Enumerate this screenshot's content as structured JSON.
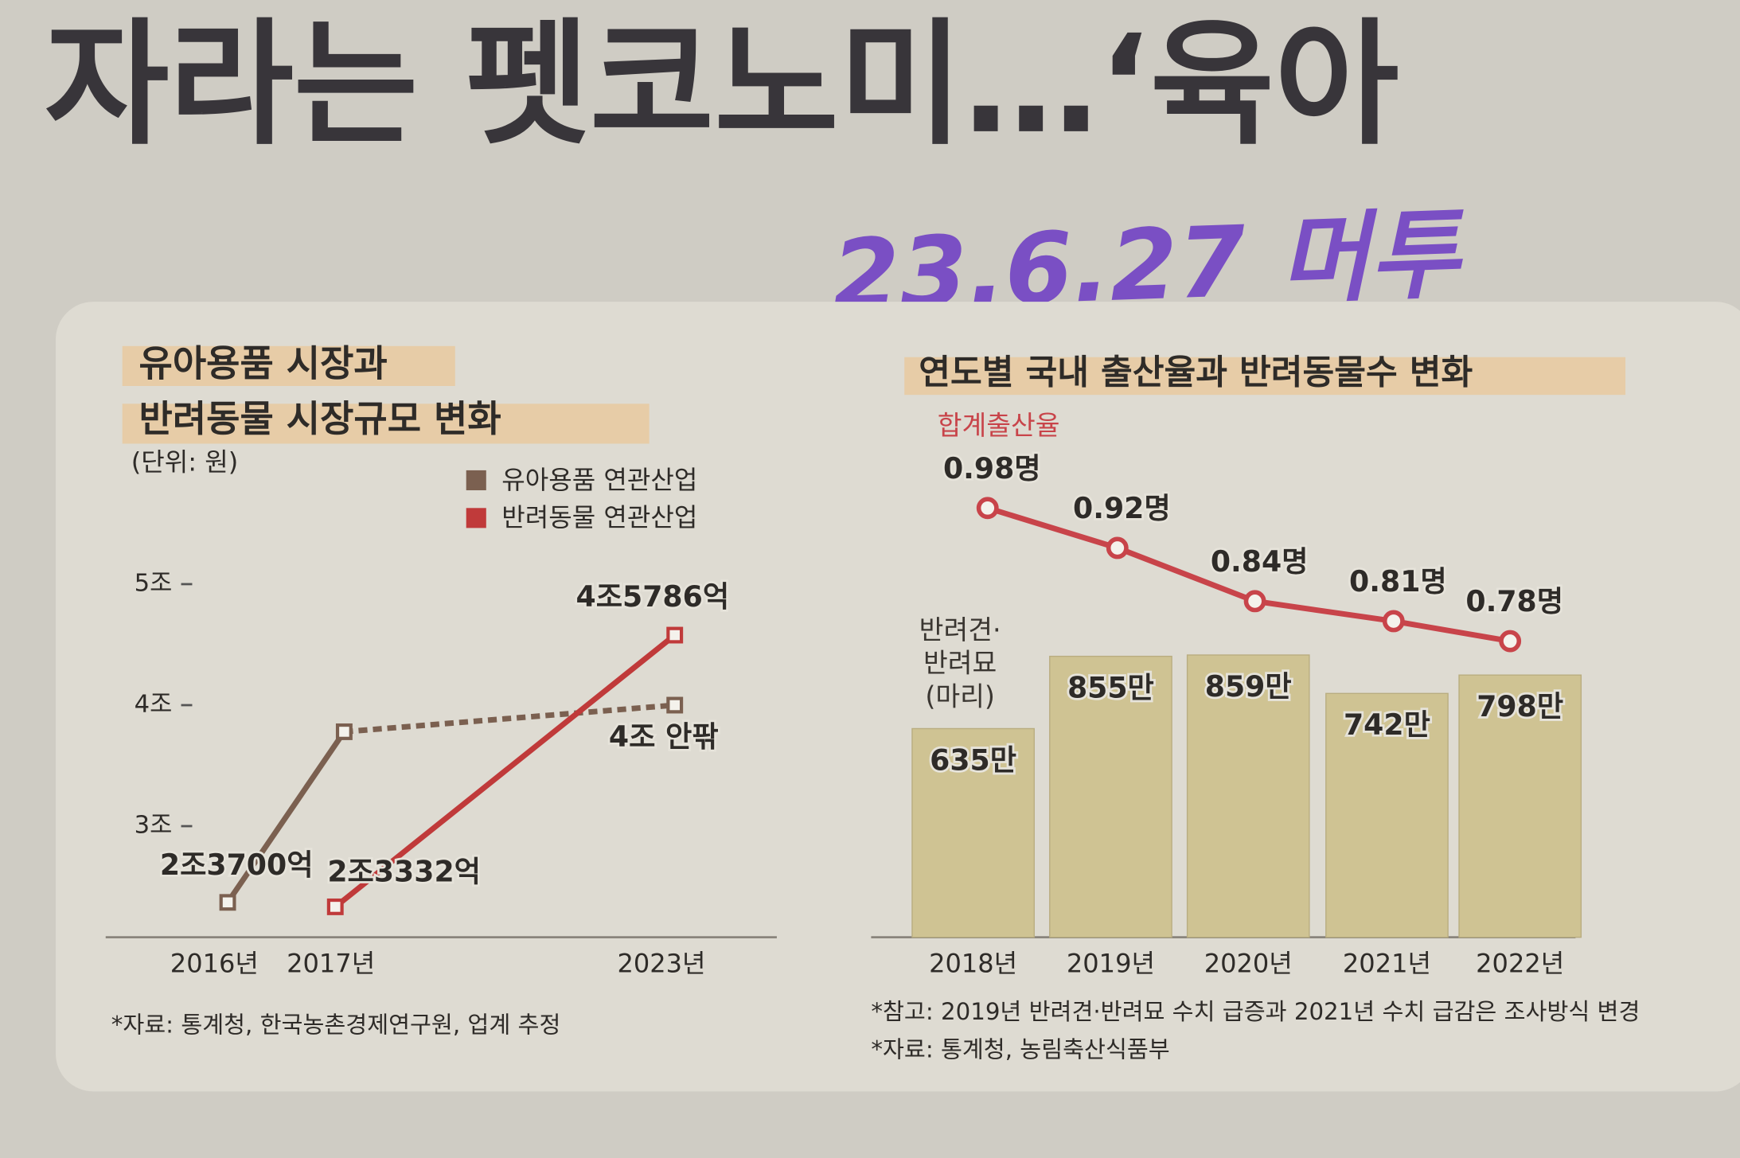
{
  "headline": "자라는 펫코노미…‘육아",
  "handwritten_note": "23.6.27 머투",
  "chart_data": [
    {
      "type": "line",
      "title": [
        "유아용품 시장과",
        "반려동물 시장규모 변화"
      ],
      "unit": "(단위: 원)",
      "categories": [
        "2016년",
        "2017년",
        "2023년"
      ],
      "series": [
        {
          "name": "유아용품 연관산업",
          "color": "#7b6050",
          "values": [
            2.37,
            3.78,
            4.0
          ],
          "value_labels": [
            "2조3700억",
            null,
            "4조 안팎"
          ],
          "dashed_last_segment": true
        },
        {
          "name": "반려동물 연관산업",
          "color": "#c03a3a",
          "values": [
            null,
            2.3332,
            4.5786
          ],
          "value_labels": [
            null,
            "2조3332억",
            "4조5786억"
          ]
        }
      ],
      "ylim": [
        2.1,
        5.4
      ],
      "yticks": [
        {
          "value": 3,
          "label": "3조"
        },
        {
          "value": 4,
          "label": "4조"
        },
        {
          "value": 5,
          "label": "5조"
        }
      ],
      "source": "*자료: 통계청, 한국농촌경제연구원, 업계 추정"
    },
    {
      "type": "bar",
      "title": "연도별 국내 출산율과 반려동물수 변화",
      "categories": [
        "2018년",
        "2019년",
        "2020년",
        "2021년",
        "2022년"
      ],
      "series": [
        {
          "name": "반려견·반려묘 (마리)",
          "type": "bar",
          "color": "#cfc393",
          "values": [
            635,
            855,
            859,
            742,
            798
          ],
          "value_labels": [
            "635만",
            "855만",
            "859만",
            "742만",
            "798만"
          ]
        },
        {
          "name": "합계출산율",
          "type": "line",
          "axis": "y2",
          "color": "#c8444a",
          "values": [
            0.98,
            0.92,
            0.84,
            0.81,
            0.78
          ],
          "value_labels": [
            "0.98명",
            "0.92명",
            "0.84명",
            "0.81명",
            "0.78명"
          ]
        }
      ],
      "ylim": [
        0,
        1600
      ],
      "y2lim": [
        0.335,
        1.125
      ],
      "notes": [
        "*참고: 2019년 반려견·반려묘 수치 급증과 2021년 수치 급감은 조사방식 변경",
        "*자료: 통계청, 농림축산식품부"
      ]
    }
  ]
}
